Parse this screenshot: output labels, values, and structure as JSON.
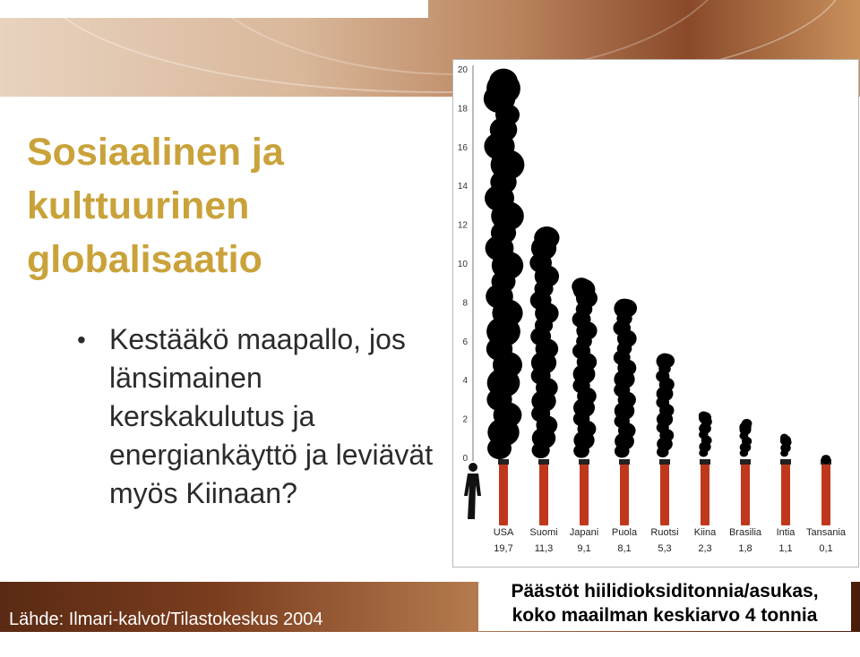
{
  "slide": {
    "title": "Sosiaalinen ja kulttuurinen globalisaatio",
    "bullet": "Kestääkö maapallo, jos länsimainen kerskakulutus ja energiankäyttö ja leviävät myös Kiinaan?",
    "source": "Lähde: Ilmari-kalvot/Tilastokeskus 2004",
    "caption_line1": "Päästöt hiilidioksiditonnia/asukas,",
    "caption_line2": "koko maailman keskiarvo 4 tonnia"
  },
  "colors": {
    "title": "#c9a23a",
    "blob": "#000000",
    "bar": "#c0381c"
  },
  "icons": {
    "person": "person-silhouette-icon"
  },
  "chart_data": {
    "type": "bar",
    "categories": [
      "USA",
      "Suomi",
      "Japani",
      "Puola",
      "Ruotsi",
      "Kiina",
      "Brasilia",
      "Intia",
      "Tansania"
    ],
    "values": [
      19.7,
      11.3,
      9.1,
      8.1,
      5.3,
      2.3,
      1.8,
      1.1,
      0.1
    ],
    "value_labels": [
      "19,7",
      "11,3",
      "9,1",
      "8,1",
      "5,3",
      "2,3",
      "1,8",
      "1,1",
      "0,1"
    ],
    "y_ticks": [
      "0",
      "2",
      "4",
      "6",
      "8",
      "10",
      "12",
      "14",
      "16",
      "18",
      "20"
    ],
    "ylim": [
      0,
      20
    ],
    "grid": false,
    "title": "",
    "xlabel": "",
    "ylabel": ""
  }
}
